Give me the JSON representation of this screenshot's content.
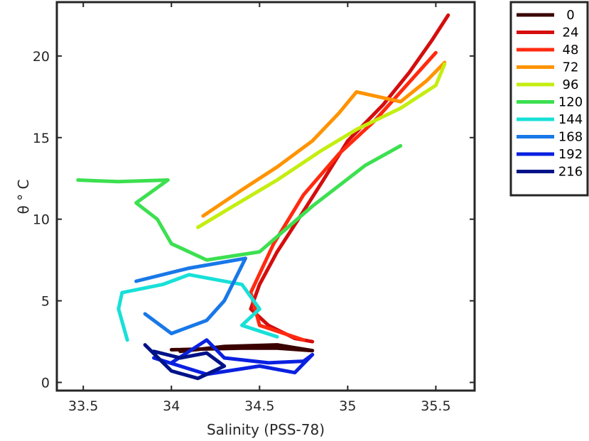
{
  "chart_data": {
    "type": "line",
    "title": "",
    "xlabel": "Salinity (PSS-78)",
    "ylabel": "θ ° C",
    "xlim": [
      33.35,
      35.72
    ],
    "ylim": [
      -0.5,
      23.3
    ],
    "xticks": [
      33.5,
      34,
      34.5,
      35,
      35.5
    ],
    "xtick_labels": [
      "33.5",
      "34",
      "34.5",
      "35",
      "35.5"
    ],
    "yticks": [
      0,
      5,
      10,
      15,
      20
    ],
    "ytick_labels": [
      "0",
      "5",
      "10",
      "15",
      "20"
    ],
    "grid": false,
    "legend_position": "outside-top-right",
    "series": [
      {
        "name": "0",
        "color": "#3a0000",
        "points": [
          [
            34.0,
            2.0
          ],
          [
            34.2,
            2.05
          ],
          [
            34.4,
            2.1
          ],
          [
            34.6,
            2.1
          ],
          [
            34.8,
            1.95
          ],
          [
            34.6,
            2.3
          ],
          [
            34.3,
            2.2
          ],
          [
            34.05,
            1.9
          ]
        ]
      },
      {
        "name": "24",
        "color": "#d40d0d",
        "points": [
          [
            35.57,
            22.5
          ],
          [
            35.48,
            21.0
          ],
          [
            35.35,
            19.0
          ],
          [
            35.2,
            17.0
          ],
          [
            35.0,
            14.8
          ],
          [
            34.85,
            12.2
          ],
          [
            34.72,
            10.0
          ],
          [
            34.6,
            8.0
          ],
          [
            34.5,
            6.0
          ],
          [
            34.45,
            4.5
          ],
          [
            34.55,
            3.5
          ],
          [
            34.7,
            2.7
          ],
          [
            34.8,
            2.5
          ]
        ]
      },
      {
        "name": "48",
        "color": "#ff2a10",
        "points": [
          [
            35.5,
            20.2
          ],
          [
            35.3,
            17.8
          ],
          [
            35.15,
            16.0
          ],
          [
            34.95,
            14.0
          ],
          [
            34.75,
            11.5
          ],
          [
            34.58,
            8.5
          ],
          [
            34.45,
            5.5
          ],
          [
            34.5,
            3.5
          ],
          [
            34.75,
            2.6
          ]
        ]
      },
      {
        "name": "72",
        "color": "#ff9300",
        "points": [
          [
            34.18,
            10.2
          ],
          [
            34.4,
            11.8
          ],
          [
            34.6,
            13.2
          ],
          [
            34.8,
            14.8
          ],
          [
            34.95,
            16.5
          ],
          [
            35.05,
            17.8
          ],
          [
            35.3,
            17.2
          ],
          [
            35.45,
            18.5
          ],
          [
            35.55,
            19.6
          ]
        ]
      },
      {
        "name": "96",
        "color": "#c4ee10",
        "points": [
          [
            34.15,
            9.5
          ],
          [
            34.35,
            10.8
          ],
          [
            34.6,
            12.4
          ],
          [
            34.85,
            14.2
          ],
          [
            35.05,
            15.5
          ],
          [
            35.3,
            16.8
          ],
          [
            35.5,
            18.2
          ],
          [
            35.55,
            19.5
          ]
        ]
      },
      {
        "name": "120",
        "color": "#3ce050",
        "points": [
          [
            33.47,
            12.4
          ],
          [
            33.7,
            12.3
          ],
          [
            33.98,
            12.4
          ],
          [
            33.8,
            11.0
          ],
          [
            33.92,
            10.0
          ],
          [
            34.0,
            8.5
          ],
          [
            34.2,
            7.5
          ],
          [
            34.5,
            8.0
          ],
          [
            34.8,
            10.8
          ],
          [
            35.1,
            13.3
          ],
          [
            35.3,
            14.5
          ]
        ]
      },
      {
        "name": "144",
        "color": "#18e0d8",
        "points": [
          [
            33.75,
            2.6
          ],
          [
            33.7,
            4.5
          ],
          [
            33.72,
            5.5
          ],
          [
            33.95,
            6.0
          ],
          [
            34.1,
            6.6
          ],
          [
            34.4,
            6.0
          ],
          [
            34.5,
            4.5
          ],
          [
            34.4,
            3.5
          ],
          [
            34.6,
            2.8
          ]
        ]
      },
      {
        "name": "168",
        "color": "#1878e8",
        "points": [
          [
            33.8,
            6.2
          ],
          [
            34.1,
            7.0
          ],
          [
            34.42,
            7.6
          ],
          [
            34.3,
            5.0
          ],
          [
            34.2,
            3.8
          ],
          [
            34.0,
            3.0
          ],
          [
            33.85,
            4.2
          ]
        ]
      },
      {
        "name": "192",
        "color": "#0a20e0",
        "points": [
          [
            34.0,
            1.2
          ],
          [
            34.2,
            2.6
          ],
          [
            34.3,
            1.5
          ],
          [
            34.55,
            1.2
          ],
          [
            34.75,
            1.3
          ],
          [
            34.8,
            1.7
          ],
          [
            34.7,
            0.6
          ],
          [
            34.5,
            1.0
          ],
          [
            34.2,
            0.5
          ],
          [
            33.9,
            1.5
          ]
        ]
      },
      {
        "name": "216",
        "color": "#001288",
        "points": [
          [
            33.85,
            2.3
          ],
          [
            34.0,
            0.7
          ],
          [
            34.15,
            0.25
          ],
          [
            34.3,
            1.0
          ],
          [
            34.2,
            1.8
          ],
          [
            34.05,
            1.5
          ],
          [
            33.9,
            1.9
          ]
        ]
      }
    ]
  }
}
